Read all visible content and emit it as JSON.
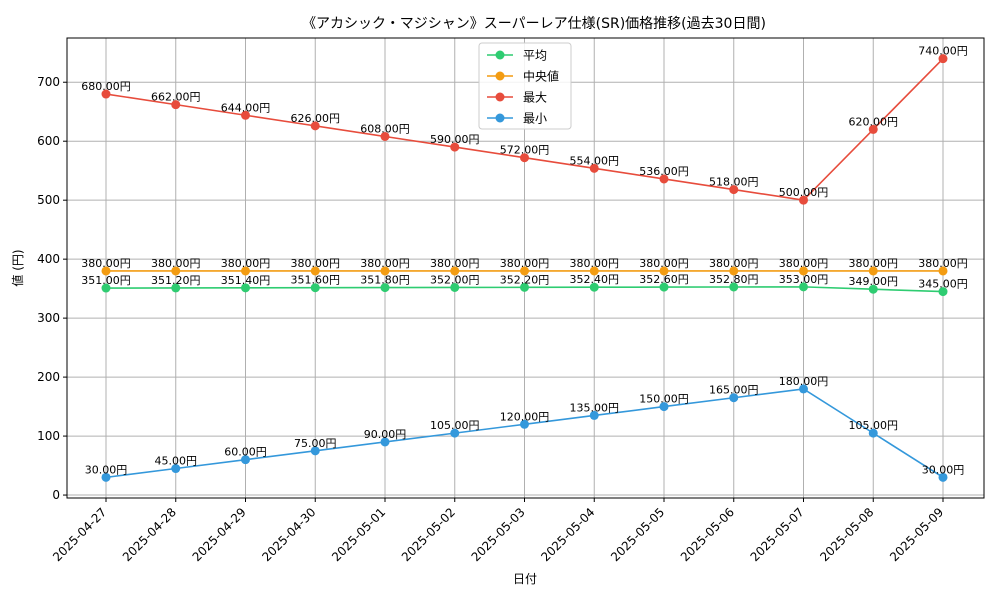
{
  "chart_data": {
    "type": "line",
    "title": "《アカシック・マジシャン》スーパーレア仕様(SR)価格推移(過去30日間)",
    "xlabel": "日付",
    "ylabel": "値 (円)",
    "ylim": [
      -5,
      775
    ],
    "yticks": [
      0,
      100,
      200,
      300,
      400,
      500,
      600,
      700
    ],
    "grid": true,
    "legend_position": "top-center",
    "value_suffix": "円",
    "categories": [
      "2025-04-27",
      "2025-04-28",
      "2025-04-29",
      "2025-04-30",
      "2025-05-01",
      "2025-05-02",
      "2025-05-03",
      "2025-05-04",
      "2025-05-05",
      "2025-05-06",
      "2025-05-07",
      "2025-05-08",
      "2025-05-09"
    ],
    "series": [
      {
        "name": "平均",
        "color": "#2ecc71",
        "values": [
          351.0,
          351.2,
          351.4,
          351.6,
          351.8,
          352.0,
          352.2,
          352.4,
          352.6,
          352.8,
          353.0,
          349.0,
          345.0
        ]
      },
      {
        "name": "中央値",
        "color": "#f39c12",
        "values": [
          380,
          380,
          380,
          380,
          380,
          380,
          380,
          380,
          380,
          380,
          380,
          380,
          380
        ]
      },
      {
        "name": "最大",
        "color": "#e74c3c",
        "values": [
          680,
          662,
          644,
          626,
          608,
          590,
          572,
          554,
          536,
          518,
          500,
          620,
          740
        ]
      },
      {
        "name": "最小",
        "color": "#3498db",
        "values": [
          30,
          45,
          60,
          75,
          90,
          105,
          120,
          135,
          150,
          165,
          180,
          105,
          30
        ]
      }
    ]
  }
}
